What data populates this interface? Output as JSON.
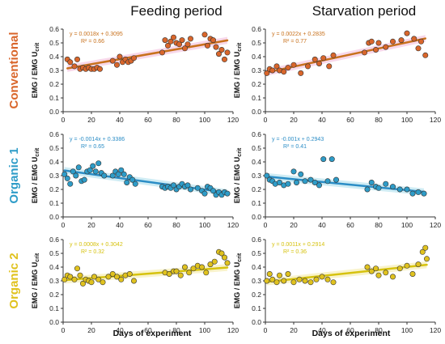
{
  "column_titles": [
    "Feeding period",
    "Starvation period"
  ],
  "row_labels": [
    {
      "text": "Conventional",
      "color": "#D9662B"
    },
    {
      "text": "Organic 1",
      "color": "#2E9CC8"
    },
    {
      "text": "Organic 2",
      "color": "#E0C21E"
    }
  ],
  "y_axis_label": "EMG / EMG U",
  "y_axis_label_sub": "crit",
  "x_axis_label": "Days of experiment",
  "chart_data": [
    {
      "type": "scatter",
      "id": "conventional-feeding",
      "xlim": [
        0,
        120
      ],
      "ylim": [
        0,
        0.6
      ],
      "xticks": [
        0,
        20,
        40,
        60,
        80,
        100,
        120
      ],
      "yticks": [
        0,
        0.1,
        0.2,
        0.3,
        0.4,
        0.5,
        0.6
      ],
      "point_color": "#D9662B",
      "trend_color": "#C8711C",
      "band_color": "#F2B8D8",
      "equation": "y = 0.0018x + 0.3095",
      "r2": "R² = 0.66",
      "trend": {
        "slope": 0.0018,
        "intercept": 0.3095
      },
      "x": [
        3,
        5,
        8,
        10,
        12,
        14,
        16,
        18,
        20,
        22,
        24,
        26,
        35,
        38,
        40,
        42,
        44,
        46,
        48,
        50,
        70,
        72,
        74,
        76,
        78,
        80,
        82,
        84,
        86,
        88,
        90,
        100,
        102,
        104,
        106,
        108,
        110,
        112,
        114,
        116
      ],
      "y": [
        0.38,
        0.36,
        0.33,
        0.38,
        0.31,
        0.32,
        0.31,
        0.32,
        0.31,
        0.31,
        0.32,
        0.31,
        0.37,
        0.34,
        0.4,
        0.36,
        0.38,
        0.36,
        0.37,
        0.39,
        0.43,
        0.52,
        0.48,
        0.51,
        0.54,
        0.5,
        0.49,
        0.52,
        0.46,
        0.49,
        0.53,
        0.56,
        0.48,
        0.53,
        0.52,
        0.47,
        0.42,
        0.45,
        0.38,
        0.43
      ]
    },
    {
      "type": "scatter",
      "id": "conventional-starvation",
      "xlim": [
        0,
        120
      ],
      "ylim": [
        0,
        0.6
      ],
      "xticks": [
        0,
        20,
        40,
        60,
        80,
        100,
        120
      ],
      "yticks": [
        0,
        0.1,
        0.2,
        0.3,
        0.4,
        0.5,
        0.6
      ],
      "point_color": "#D9662B",
      "trend_color": "#C8711C",
      "band_color": "#F2B8D8",
      "equation": "y = 0.0022x + 0.2835",
      "r2": "R² = 0.77",
      "trend": {
        "slope": 0.0022,
        "intercept": 0.2835
      },
      "x": [
        1,
        3,
        5,
        8,
        10,
        13,
        16,
        20,
        25,
        30,
        35,
        38,
        41,
        45,
        48,
        70,
        73,
        75,
        78,
        80,
        85,
        90,
        96,
        100,
        105,
        108,
        110,
        113
      ],
      "y": [
        0.28,
        0.31,
        0.3,
        0.33,
        0.3,
        0.29,
        0.32,
        0.34,
        0.28,
        0.33,
        0.38,
        0.35,
        0.39,
        0.33,
        0.41,
        0.43,
        0.5,
        0.51,
        0.45,
        0.5,
        0.47,
        0.51,
        0.52,
        0.57,
        0.53,
        0.46,
        0.51,
        0.41
      ]
    },
    {
      "type": "scatter",
      "id": "organic1-feeding",
      "xlim": [
        0,
        120
      ],
      "ylim": [
        0,
        0.6
      ],
      "xticks": [
        0,
        20,
        40,
        60,
        80,
        100,
        120
      ],
      "yticks": [
        0,
        0.1,
        0.2,
        0.3,
        0.4,
        0.5,
        0.6
      ],
      "point_color": "#2E9CC8",
      "trend_color": "#2B8DC6",
      "band_color": "#A8DCEB",
      "equation": "y = -0.0014x + 0.3386",
      "r2": "R² = 0.65",
      "trend": {
        "slope": -0.0014,
        "intercept": 0.3386
      },
      "x": [
        1,
        3,
        5,
        7,
        9,
        11,
        13,
        15,
        17,
        19,
        21,
        23,
        25,
        27,
        29,
        35,
        37,
        39,
        41,
        43,
        45,
        47,
        49,
        51,
        70,
        72,
        74,
        76,
        78,
        80,
        82,
        84,
        86,
        88,
        90,
        95,
        98,
        100,
        102,
        104,
        106,
        108,
        110,
        112,
        114,
        116
      ],
      "y": [
        0.31,
        0.28,
        0.24,
        0.33,
        0.3,
        0.36,
        0.26,
        0.27,
        0.33,
        0.34,
        0.37,
        0.33,
        0.39,
        0.32,
        0.3,
        0.3,
        0.33,
        0.31,
        0.34,
        0.31,
        0.25,
        0.29,
        0.27,
        0.24,
        0.22,
        0.21,
        0.22,
        0.21,
        0.23,
        0.2,
        0.22,
        0.24,
        0.22,
        0.23,
        0.2,
        0.21,
        0.19,
        0.17,
        0.22,
        0.21,
        0.19,
        0.16,
        0.18,
        0.16,
        0.18,
        0.17
      ]
    },
    {
      "type": "scatter",
      "id": "organic1-starvation",
      "xlim": [
        0,
        120
      ],
      "ylim": [
        0,
        0.6
      ],
      "xticks": [
        0,
        20,
        40,
        60,
        80,
        100,
        120
      ],
      "yticks": [
        0,
        0.1,
        0.2,
        0.3,
        0.4,
        0.5,
        0.6
      ],
      "point_color": "#2E9CC8",
      "trend_color": "#2B8DC6",
      "band_color": "#A8DCEB",
      "equation": "y = -0.001x + 0.2943",
      "r2": "R² = 0.41",
      "trend": {
        "slope": -0.001,
        "intercept": 0.2943
      },
      "x": [
        1,
        3,
        5,
        7,
        10,
        13,
        16,
        20,
        22,
        25,
        28,
        32,
        35,
        38,
        41,
        44,
        47,
        50,
        72,
        75,
        78,
        80,
        85,
        90,
        95,
        100,
        104,
        108,
        112
      ],
      "y": [
        0.3,
        0.27,
        0.26,
        0.24,
        0.25,
        0.23,
        0.24,
        0.33,
        0.25,
        0.31,
        0.26,
        0.27,
        0.25,
        0.23,
        0.42,
        0.26,
        0.42,
        0.27,
        0.2,
        0.25,
        0.22,
        0.21,
        0.24,
        0.22,
        0.2,
        0.2,
        0.17,
        0.18,
        0.17
      ]
    },
    {
      "type": "scatter",
      "id": "organic2-feeding",
      "xlim": [
        0,
        120
      ],
      "ylim": [
        0,
        0.6
      ],
      "xticks": [
        0,
        20,
        40,
        60,
        80,
        100,
        120
      ],
      "yticks": [
        0,
        0.1,
        0.2,
        0.3,
        0.4,
        0.5,
        0.6
      ],
      "point_color": "#E0C21E",
      "trend_color": "#D6C20E",
      "band_color": "#F4EAA0",
      "equation": "y = 0.0008x + 0.3042",
      "r2": "R² = 0.32",
      "trend": {
        "slope": 0.0008,
        "intercept": 0.3042
      },
      "x": [
        1,
        3,
        5,
        8,
        10,
        12,
        14,
        16,
        18,
        20,
        22,
        25,
        28,
        32,
        35,
        38,
        41,
        44,
        47,
        50,
        72,
        75,
        78,
        80,
        83,
        86,
        89,
        92,
        95,
        98,
        101,
        104,
        107,
        110,
        112,
        114,
        116
      ],
      "y": [
        0.31,
        0.34,
        0.33,
        0.31,
        0.39,
        0.34,
        0.28,
        0.31,
        0.3,
        0.29,
        0.33,
        0.31,
        0.29,
        0.33,
        0.35,
        0.33,
        0.31,
        0.34,
        0.35,
        0.3,
        0.36,
        0.35,
        0.37,
        0.37,
        0.34,
        0.4,
        0.36,
        0.39,
        0.41,
        0.4,
        0.36,
        0.42,
        0.44,
        0.51,
        0.5,
        0.47,
        0.43
      ]
    },
    {
      "type": "scatter",
      "id": "organic2-starvation",
      "xlim": [
        0,
        120
      ],
      "ylim": [
        0,
        0.6
      ],
      "xticks": [
        0,
        20,
        40,
        60,
        80,
        100,
        120
      ],
      "yticks": [
        0,
        0.1,
        0.2,
        0.3,
        0.4,
        0.5,
        0.6
      ],
      "point_color": "#E0C21E",
      "trend_color": "#D6C20E",
      "band_color": "#F4EAA0",
      "equation": "y = 0.0011x + 0.2914",
      "r2": "R² = 0.36",
      "trend": {
        "slope": 0.0011,
        "intercept": 0.2914
      },
      "x": [
        1,
        3,
        5,
        8,
        10,
        13,
        16,
        20,
        24,
        28,
        32,
        36,
        40,
        44,
        48,
        72,
        75,
        78,
        80,
        85,
        90,
        95,
        100,
        104,
        108,
        111,
        113,
        114
      ],
      "y": [
        0.3,
        0.35,
        0.31,
        0.29,
        0.34,
        0.3,
        0.35,
        0.29,
        0.31,
        0.3,
        0.29,
        0.31,
        0.33,
        0.31,
        0.29,
        0.4,
        0.37,
        0.39,
        0.34,
        0.36,
        0.33,
        0.39,
        0.41,
        0.35,
        0.42,
        0.51,
        0.54,
        0.46
      ]
    }
  ]
}
